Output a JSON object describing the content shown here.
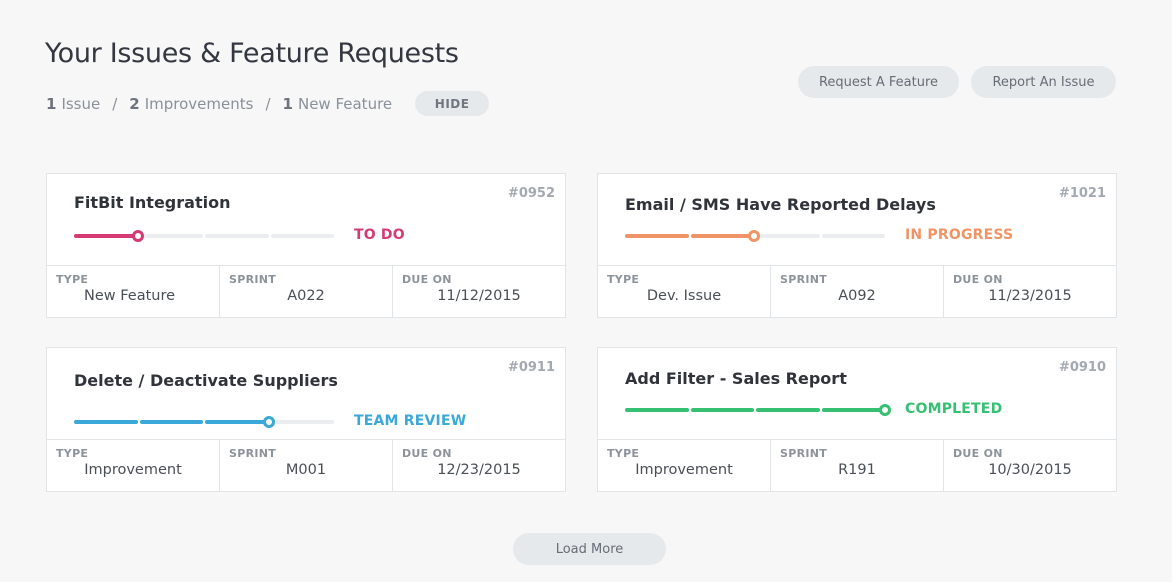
{
  "header": {
    "title": "Your Issues & Feature Requests",
    "summary": [
      {
        "count": "1",
        "label": "Issue"
      },
      {
        "count": "2",
        "label": "Improvements"
      },
      {
        "count": "1",
        "label": "New Feature"
      }
    ],
    "hide_label": "HIDE",
    "request_feature_label": "Request A Feature",
    "report_issue_label": "Report An Issue"
  },
  "meta_labels": {
    "type": "TYPE",
    "sprint": "SPRINT",
    "due": "DUE ON"
  },
  "cards": [
    {
      "id": "#0952",
      "title": "FitBit Integration",
      "status": "TO DO",
      "color": "#d63a75",
      "progress_steps": 1,
      "type": "New Feature",
      "sprint": "A022",
      "due": "11/12/2015"
    },
    {
      "id": "#1021",
      "title": "Email / SMS Have Reported Delays",
      "status": "IN PROGRESS",
      "color": "#ee9466",
      "progress_steps": 2,
      "type": "Dev. Issue",
      "sprint": "A092",
      "due": "11/23/2015"
    },
    {
      "id": "#0911",
      "title": "Delete / Deactivate Suppliers",
      "status": "TEAM REVIEW",
      "color": "#3aa8d8",
      "progress_steps": 3,
      "type": "Improvement",
      "sprint": "M001",
      "due": "12/23/2015"
    },
    {
      "id": "#0910",
      "title": "Add Filter - Sales Report",
      "status": "COMPLETED",
      "color": "#35c072",
      "progress_steps": 4,
      "type": "Improvement",
      "sprint": "R191",
      "due": "10/30/2015"
    }
  ],
  "load_more_label": "Load More"
}
